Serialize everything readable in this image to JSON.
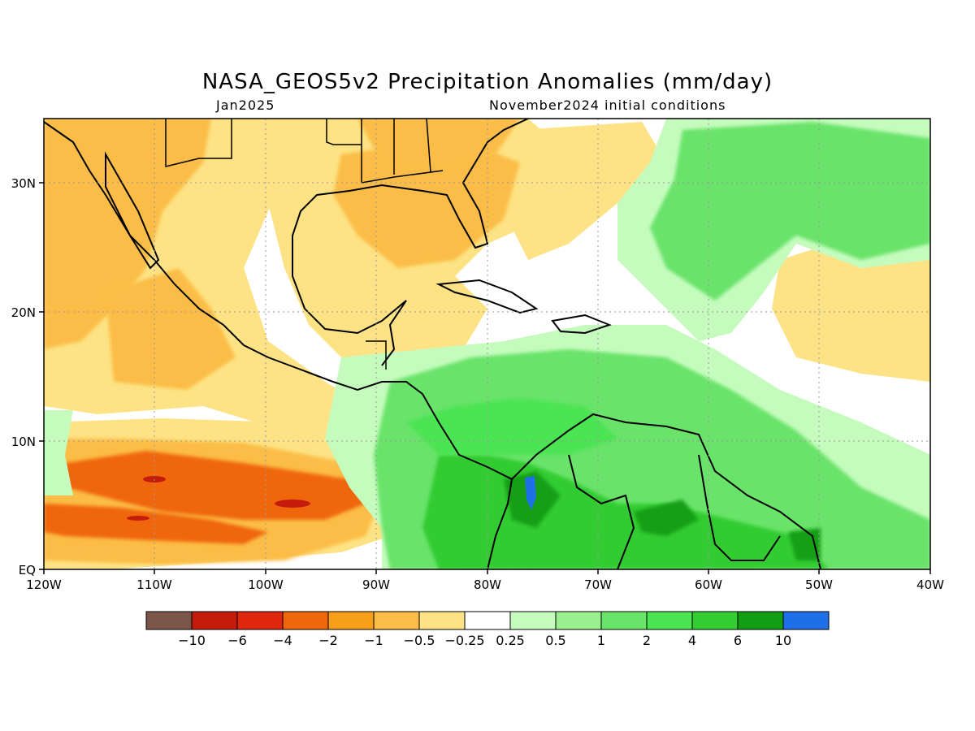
{
  "header": {
    "title": "NASA_GEOS5v2 Precipitation Anomalies (mm/day)",
    "subtitle_left": "Jan2025",
    "subtitle_right": "November2024 initial conditions"
  },
  "map": {
    "lon_ticks": [
      "120W",
      "110W",
      "100W",
      "90W",
      "80W",
      "70W",
      "60W",
      "50W",
      "40W"
    ],
    "lat_ticks": [
      "EQ",
      "10N",
      "20N",
      "30N"
    ],
    "gridlines": "dotted"
  },
  "colorbar": {
    "colors": [
      "#7a5548",
      "#c41c0c",
      "#e0260c",
      "#f0660a",
      "#f89f1a",
      "#fbbd47",
      "#fde385",
      "#ffffff",
      "#c5fcbe",
      "#9af08f",
      "#6ae36a",
      "#4be452",
      "#33cc33",
      "#129e13",
      "#1f6fe8"
    ],
    "labels": [
      "−10",
      "−6",
      "−4",
      "−2",
      "−1",
      "−0.5",
      "−0.25",
      "0.25",
      "0.5",
      "1",
      "2",
      "4",
      "6",
      "10"
    ]
  },
  "colors": {
    "dry_light": "#fde385",
    "dry_medium": "#fbbd47",
    "dry_strong": "#f0660a",
    "wet_light": "#c5fcbe",
    "wet_medium": "#6ae36a",
    "wet_strong": "#33cc33",
    "wet_extreme": "#1f6fe8"
  }
}
